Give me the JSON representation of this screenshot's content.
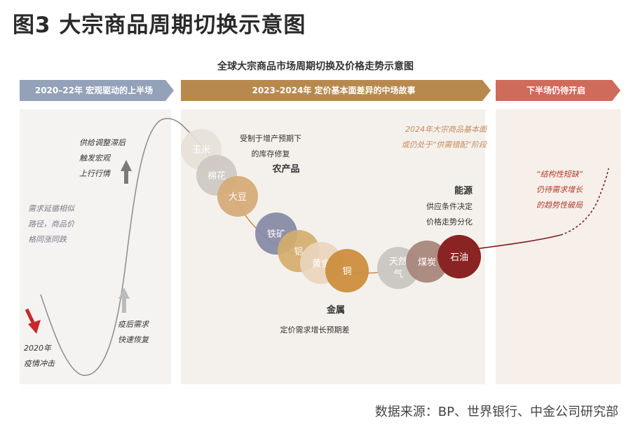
{
  "page_title": "图3  大宗商品周期切换示意图",
  "figure_title": "全球大宗商品市场周期切换及价格走势示意图",
  "phases": [
    {
      "label": "2020–22年  宏观驱动的上半场",
      "color": "#93a1b9"
    },
    {
      "label": "2023–2024年  定价基本面差异的中场故事",
      "color": "#b8894e"
    },
    {
      "label": "下半场仍待开启",
      "color": "#cf6b5b"
    }
  ],
  "annotations": {
    "covid_line1": "2020年",
    "covid_line2": "疫情冲击",
    "recovery_line1": "疫后需求",
    "recovery_line2": "快速恢复",
    "divergence_line1": "需求延循相似",
    "divergence_line2": "路径，商品价",
    "divergence_line3": "格同涨同跌",
    "supply_line1": "供给调整滞后",
    "supply_line2": "触发宏观",
    "supply_line3": "上行行情",
    "ag_line1": "受制于增产预期下",
    "ag_line2": "的库存修复",
    "ag_title": "农产品",
    "mid_line1": "2024年大宗商品基本面",
    "mid_line2": "或仍处于“供需错配”阶段",
    "energy_title": "能源",
    "energy_line1": "供应条件决定",
    "energy_line2": "价格走势分化",
    "metals_title": "金属",
    "metals_line1": "定价需求增长预期差",
    "right_line1": "“结构性短缺”",
    "right_line2": "仍待需求增长",
    "right_line3": "的趋势性破局"
  },
  "commodities": [
    {
      "label": "玉米",
      "color": "#e7e0d8"
    },
    {
      "label": "棉花",
      "color": "#cfc8c3"
    },
    {
      "label": "大豆",
      "color": "#d6ab78"
    },
    {
      "label": "铁矿",
      "color": "#888ba6"
    },
    {
      "label": "铝",
      "color": "#d4ae6c"
    },
    {
      "label": "黄金",
      "color": "#ead6bd"
    },
    {
      "label": "铜",
      "color": "#cc8e3e"
    },
    {
      "label": "天然气",
      "color": "#c9c6c2"
    },
    {
      "label": "煤炭",
      "color": "#a9877b"
    },
    {
      "label": "石油",
      "color": "#8a2323"
    }
  ],
  "colors": {
    "arrow_red": "#c8282a",
    "arrow_gray": "#7a7a7a",
    "curve_gray": "#8c8c8c",
    "curve_orange": "#c9824a",
    "curve_dark_red": "#7a2222"
  },
  "source": "数据来源：BP、世界银行、中金公司研究部"
}
